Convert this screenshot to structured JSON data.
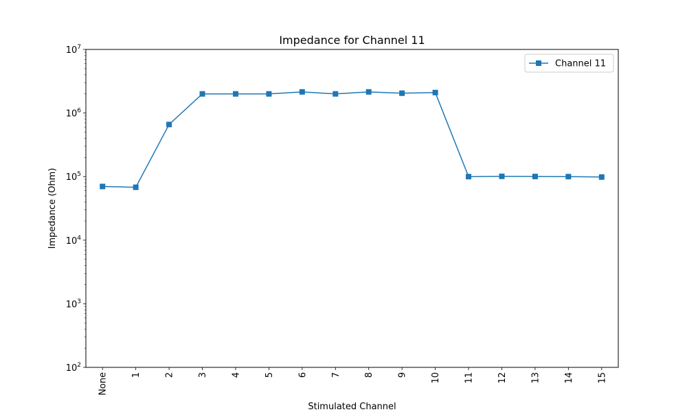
{
  "chart_data": {
    "type": "line",
    "title": "Impedance for Channel 11",
    "xlabel": "Stimulated Channel",
    "ylabel": "Impedance (Ohm)",
    "categories": [
      "None",
      "1",
      "2",
      "3",
      "4",
      "5",
      "6",
      "7",
      "8",
      "9",
      "10",
      "11",
      "12",
      "13",
      "14",
      "15"
    ],
    "series": [
      {
        "name": "Channel 11",
        "color": "#1f77b4",
        "marker": "square",
        "values": [
          70000,
          68000,
          660000,
          2000000,
          2000000,
          2000000,
          2150000,
          2000000,
          2150000,
          2050000,
          2100000,
          100000,
          101000,
          100500,
          100000,
          98500
        ]
      }
    ],
    "yscale": "log",
    "ylim": [
      100,
      10000000
    ],
    "yticks": [
      {
        "base": "10",
        "exp": "2",
        "value": 100
      },
      {
        "base": "10",
        "exp": "3",
        "value": 1000
      },
      {
        "base": "10",
        "exp": "4",
        "value": 10000
      },
      {
        "base": "10",
        "exp": "5",
        "value": 100000
      },
      {
        "base": "10",
        "exp": "6",
        "value": 1000000
      },
      {
        "base": "10",
        "exp": "7",
        "value": 10000000
      }
    ],
    "grid": false,
    "legend_position": "top-right",
    "xtick_rotation": "vertical"
  }
}
